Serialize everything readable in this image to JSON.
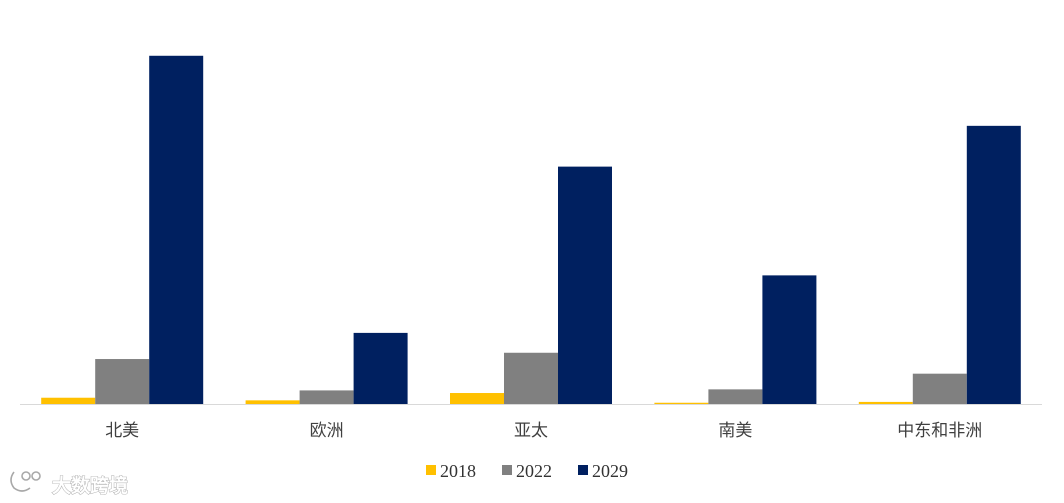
{
  "chart_data": {
    "type": "bar",
    "categories": [
      "北美",
      "欧洲",
      "亚太",
      "南美",
      "中东和非洲"
    ],
    "series": [
      {
        "name": "2018",
        "color": "#FFC000",
        "values": [
          0.6,
          0.35,
          1.05,
          0.12,
          0.2
        ]
      },
      {
        "name": "2022",
        "color": "#808080",
        "values": [
          4.3,
          1.3,
          4.9,
          1.4,
          2.9
        ]
      },
      {
        "name": "2029",
        "color": "#002060",
        "values": [
          33.3,
          6.8,
          22.7,
          12.3,
          26.6
        ]
      }
    ],
    "ylim": [
      0,
      35
    ],
    "grid": false,
    "legend_position": "bottom"
  },
  "watermark": {
    "text": "大数跨境"
  }
}
